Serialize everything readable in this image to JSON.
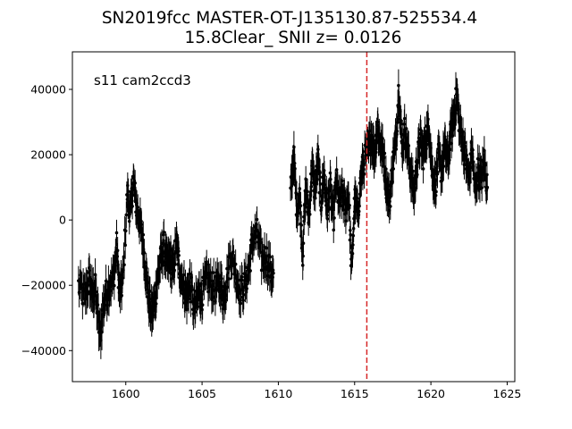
{
  "chart_data": {
    "type": "scatter",
    "title": "SN2019fcc  MASTER-OT-J135130.87-525534.4",
    "subtitle": "15.8Clear_ SNII z= 0.0126",
    "annotation": "s11 cam2ccd3",
    "xlabel": "",
    "ylabel": "",
    "xlim": [
      1596.5,
      1625.5
    ],
    "ylim": [
      -49500,
      51500
    ],
    "x_ticks": [
      1600,
      1605,
      1610,
      1615,
      1620,
      1625
    ],
    "y_ticks": [
      -40000,
      -20000,
      0,
      20000,
      40000
    ],
    "y_tick_labels": [
      "−40000",
      "−20000",
      "0",
      "20000",
      "40000"
    ],
    "grid": false,
    "marker_color": "#000000",
    "vline": {
      "x": 1615.8,
      "color": "#d62728",
      "style": "dashed"
    },
    "gaps": [
      [
        1609.8,
        1610.8
      ]
    ],
    "series": [
      {
        "points": [
          [
            1596.9,
            -20000,
            4500
          ],
          [
            1597.3,
            -24000,
            5000
          ],
          [
            1597.6,
            -18000,
            4500
          ],
          [
            1597.8,
            -23000,
            5000
          ],
          [
            1598.0,
            -21000,
            5000
          ],
          [
            1598.3,
            -36000,
            6000
          ],
          [
            1598.6,
            -24000,
            5000
          ],
          [
            1598.9,
            -20000,
            5000
          ],
          [
            1599.2,
            -18000,
            4500
          ],
          [
            1599.4,
            -8000,
            4000
          ],
          [
            1599.6,
            -23000,
            4500
          ],
          [
            1599.8,
            -19000,
            4500
          ],
          [
            1600.1,
            8000,
            4000
          ],
          [
            1600.3,
            2000,
            4000
          ],
          [
            1600.5,
            12000,
            4000
          ],
          [
            1600.7,
            4000,
            4000
          ],
          [
            1600.9,
            0,
            4000
          ],
          [
            1601.1,
            -6000,
            4000
          ],
          [
            1601.3,
            -15000,
            4500
          ],
          [
            1601.5,
            -24000,
            4500
          ],
          [
            1601.7,
            -29000,
            4500
          ],
          [
            1601.9,
            -25000,
            4500
          ],
          [
            1602.1,
            -17000,
            4500
          ],
          [
            1602.3,
            -12000,
            4500
          ],
          [
            1602.5,
            -8000,
            4000
          ],
          [
            1602.7,
            -14000,
            4500
          ],
          [
            1602.9,
            -12000,
            4500
          ],
          [
            1603.1,
            -16000,
            4500
          ],
          [
            1603.3,
            -7000,
            4000
          ],
          [
            1603.5,
            -14000,
            4500
          ],
          [
            1603.8,
            -20000,
            4500
          ],
          [
            1604.0,
            -24000,
            4500
          ],
          [
            1604.2,
            -19000,
            4500
          ],
          [
            1604.5,
            -28000,
            5000
          ],
          [
            1604.8,
            -22000,
            4500
          ],
          [
            1605.0,
            -23000,
            4500
          ],
          [
            1605.3,
            -18000,
            4500
          ],
          [
            1605.6,
            -20000,
            4500
          ],
          [
            1605.9,
            -21000,
            4500
          ],
          [
            1606.2,
            -19000,
            4500
          ],
          [
            1606.4,
            -24000,
            4500
          ],
          [
            1606.6,
            -19000,
            4500
          ],
          [
            1606.9,
            -10000,
            4000
          ],
          [
            1607.2,
            -16000,
            4500
          ],
          [
            1607.5,
            -22000,
            4500
          ],
          [
            1607.8,
            -20000,
            4500
          ],
          [
            1608.1,
            -14000,
            4500
          ],
          [
            1608.3,
            -6000,
            4000
          ],
          [
            1608.6,
            -4000,
            4000
          ],
          [
            1608.9,
            -12000,
            4500
          ],
          [
            1609.2,
            -11000,
            4500
          ],
          [
            1609.5,
            -16000,
            4500
          ],
          [
            1609.7,
            -18000,
            4500
          ],
          [
            1610.8,
            8000,
            4000
          ],
          [
            1611.0,
            20000,
            5000
          ],
          [
            1611.2,
            4000,
            4000
          ],
          [
            1611.4,
            7000,
            4000
          ],
          [
            1611.6,
            -10000,
            4500
          ],
          [
            1611.8,
            10000,
            4000
          ],
          [
            1612.0,
            1000,
            4000
          ],
          [
            1612.2,
            16000,
            4500
          ],
          [
            1612.4,
            9000,
            4000
          ],
          [
            1612.6,
            18000,
            4500
          ],
          [
            1612.8,
            6000,
            4000
          ],
          [
            1613.0,
            14000,
            4500
          ],
          [
            1613.2,
            3000,
            4000
          ],
          [
            1613.4,
            10000,
            4000
          ],
          [
            1613.6,
            0,
            4000
          ],
          [
            1613.8,
            12000,
            4000
          ],
          [
            1614.0,
            5000,
            4000
          ],
          [
            1614.2,
            8000,
            4000
          ],
          [
            1614.4,
            3000,
            4000
          ],
          [
            1614.6,
            9000,
            4000
          ],
          [
            1614.8,
            -16000,
            4500
          ],
          [
            1615.0,
            6000,
            4000
          ],
          [
            1615.2,
            2000,
            4000
          ],
          [
            1615.4,
            12000,
            4000
          ],
          [
            1615.6,
            18000,
            4500
          ],
          [
            1615.9,
            21000,
            4500
          ],
          [
            1616.1,
            26000,
            4500
          ],
          [
            1616.3,
            20000,
            4500
          ],
          [
            1616.5,
            29000,
            4500
          ],
          [
            1616.7,
            23000,
            4500
          ],
          [
            1616.9,
            20000,
            4500
          ],
          [
            1617.1,
            10000,
            4000
          ],
          [
            1617.3,
            6000,
            4000
          ],
          [
            1617.5,
            17000,
            4500
          ],
          [
            1617.7,
            24000,
            4500
          ],
          [
            1617.9,
            41000,
            5000
          ],
          [
            1618.1,
            22000,
            4500
          ],
          [
            1618.3,
            28000,
            4500
          ],
          [
            1618.5,
            20000,
            4500
          ],
          [
            1618.7,
            14000,
            4500
          ],
          [
            1618.9,
            8000,
            4000
          ],
          [
            1619.1,
            18000,
            4500
          ],
          [
            1619.3,
            24000,
            4500
          ],
          [
            1619.5,
            20000,
            4500
          ],
          [
            1619.7,
            26000,
            4500
          ],
          [
            1619.9,
            28000,
            4500
          ],
          [
            1620.1,
            14000,
            4500
          ],
          [
            1620.3,
            11000,
            4000
          ],
          [
            1620.5,
            19000,
            4500
          ],
          [
            1620.7,
            15000,
            4500
          ],
          [
            1620.9,
            22000,
            4500
          ],
          [
            1621.1,
            18000,
            4500
          ],
          [
            1621.3,
            26000,
            4500
          ],
          [
            1621.5,
            32000,
            5000
          ],
          [
            1621.7,
            38000,
            5000
          ],
          [
            1621.9,
            28000,
            4500
          ],
          [
            1622.1,
            24000,
            4500
          ],
          [
            1622.3,
            18000,
            4500
          ],
          [
            1622.5,
            12000,
            4000
          ],
          [
            1622.7,
            22000,
            4500
          ],
          [
            1622.9,
            8000,
            4000
          ],
          [
            1623.1,
            16000,
            4500
          ],
          [
            1623.3,
            12000,
            4000
          ],
          [
            1623.5,
            18000,
            4500
          ],
          [
            1623.7,
            10000,
            4000
          ]
        ]
      }
    ]
  }
}
